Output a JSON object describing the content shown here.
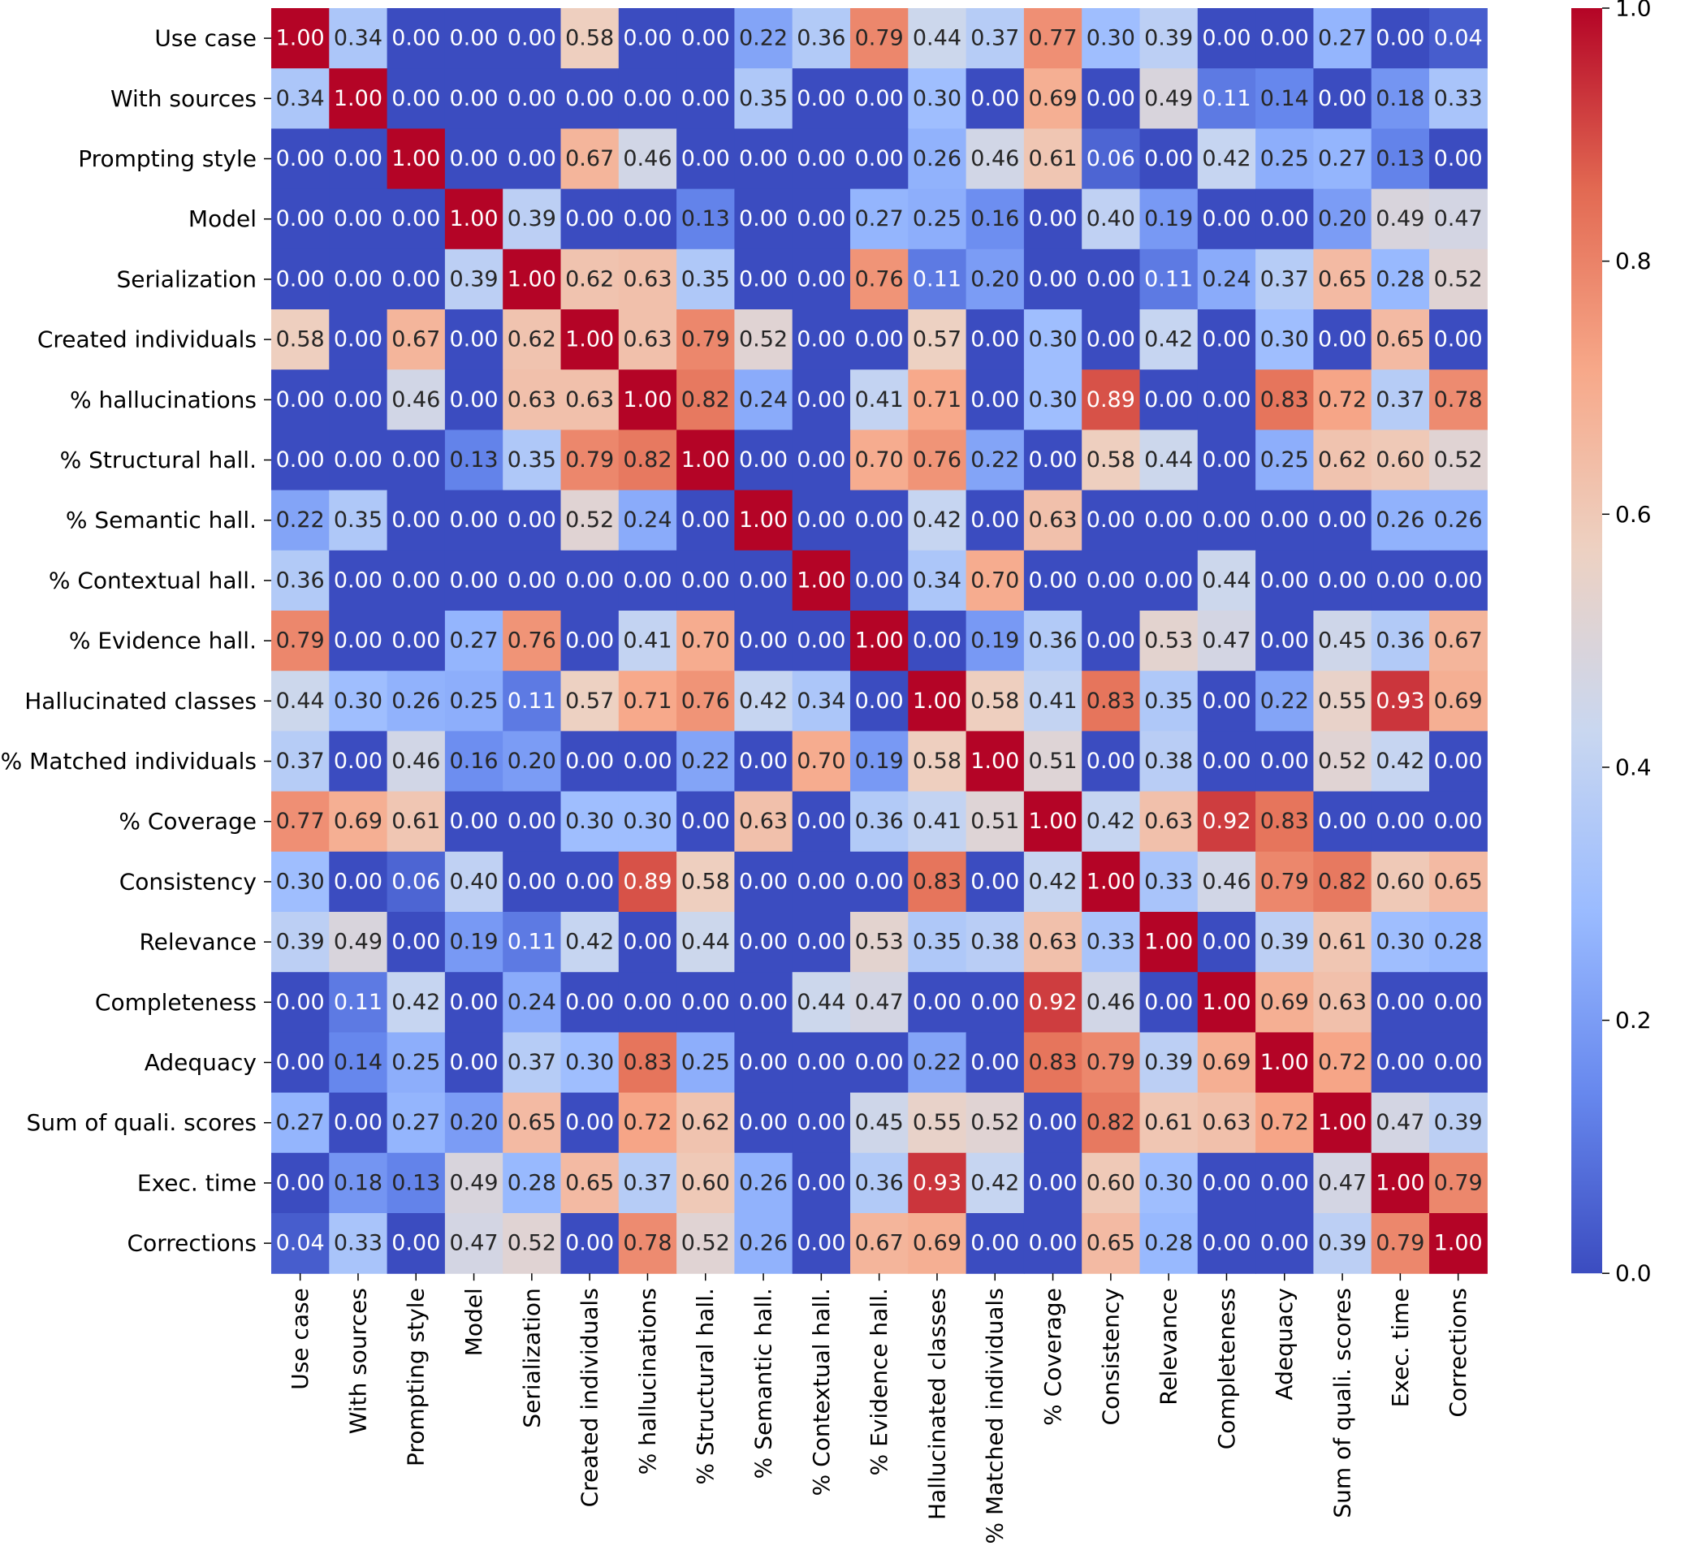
{
  "chart_data": {
    "type": "heatmap",
    "title": "",
    "labels": [
      "Use case",
      "With sources",
      "Prompting style",
      "Model",
      "Serialization",
      "Created individuals",
      "% hallucinations",
      "% Structural hall.",
      "% Semantic hall.",
      "% Contextual hall.",
      "% Evidence hall.",
      "Hallucinated classes",
      "% Matched individuals",
      "% Coverage",
      "Consistency",
      "Relevance",
      "Completeness",
      "Adequacy",
      "Sum of quali. scores",
      "Exec. time",
      "Corrections"
    ],
    "matrix": [
      [
        1.0,
        0.34,
        0.0,
        0.0,
        0.0,
        0.58,
        0.0,
        0.0,
        0.22,
        0.36,
        0.79,
        0.44,
        0.37,
        0.77,
        0.3,
        0.39,
        0.0,
        0.0,
        0.27,
        0.0,
        0.04
      ],
      [
        0.34,
        1.0,
        0.0,
        0.0,
        0.0,
        0.0,
        0.0,
        0.0,
        0.35,
        0.0,
        0.0,
        0.3,
        0.0,
        0.69,
        0.0,
        0.49,
        0.11,
        0.14,
        0.0,
        0.18,
        0.33
      ],
      [
        0.0,
        0.0,
        1.0,
        0.0,
        0.0,
        0.67,
        0.46,
        0.0,
        0.0,
        0.0,
        0.0,
        0.26,
        0.46,
        0.61,
        0.06,
        0.0,
        0.42,
        0.25,
        0.27,
        0.13,
        0.0
      ],
      [
        0.0,
        0.0,
        0.0,
        1.0,
        0.39,
        0.0,
        0.0,
        0.13,
        0.0,
        0.0,
        0.27,
        0.25,
        0.16,
        0.0,
        0.4,
        0.19,
        0.0,
        0.0,
        0.2,
        0.49,
        0.47
      ],
      [
        0.0,
        0.0,
        0.0,
        0.39,
        1.0,
        0.62,
        0.63,
        0.35,
        0.0,
        0.0,
        0.76,
        0.11,
        0.2,
        0.0,
        0.0,
        0.11,
        0.24,
        0.37,
        0.65,
        0.28,
        0.52
      ],
      [
        0.58,
        0.0,
        0.67,
        0.0,
        0.62,
        1.0,
        0.63,
        0.79,
        0.52,
        0.0,
        0.0,
        0.57,
        0.0,
        0.3,
        0.0,
        0.42,
        0.0,
        0.3,
        0.0,
        0.65,
        0.0
      ],
      [
        0.0,
        0.0,
        0.46,
        0.0,
        0.63,
        0.63,
        1.0,
        0.82,
        0.24,
        0.0,
        0.41,
        0.71,
        0.0,
        0.3,
        0.89,
        0.0,
        0.0,
        0.83,
        0.72,
        0.37,
        0.78
      ],
      [
        0.0,
        0.0,
        0.0,
        0.13,
        0.35,
        0.79,
        0.82,
        1.0,
        0.0,
        0.0,
        0.7,
        0.76,
        0.22,
        0.0,
        0.58,
        0.44,
        0.0,
        0.25,
        0.62,
        0.6,
        0.52
      ],
      [
        0.22,
        0.35,
        0.0,
        0.0,
        0.0,
        0.52,
        0.24,
        0.0,
        1.0,
        0.0,
        0.0,
        0.42,
        0.0,
        0.63,
        0.0,
        0.0,
        0.0,
        0.0,
        0.0,
        0.26,
        0.26
      ],
      [
        0.36,
        0.0,
        0.0,
        0.0,
        0.0,
        0.0,
        0.0,
        0.0,
        0.0,
        1.0,
        0.0,
        0.34,
        0.7,
        0.0,
        0.0,
        0.0,
        0.44,
        0.0,
        0.0,
        0.0,
        0.0
      ],
      [
        0.79,
        0.0,
        0.0,
        0.27,
        0.76,
        0.0,
        0.41,
        0.7,
        0.0,
        0.0,
        1.0,
        0.0,
        0.19,
        0.36,
        0.0,
        0.53,
        0.47,
        0.0,
        0.45,
        0.36,
        0.67
      ],
      [
        0.44,
        0.3,
        0.26,
        0.25,
        0.11,
        0.57,
        0.71,
        0.76,
        0.42,
        0.34,
        0.0,
        1.0,
        0.58,
        0.41,
        0.83,
        0.35,
        0.0,
        0.22,
        0.55,
        0.93,
        0.69
      ],
      [
        0.37,
        0.0,
        0.46,
        0.16,
        0.2,
        0.0,
        0.0,
        0.22,
        0.0,
        0.7,
        0.19,
        0.58,
        1.0,
        0.51,
        0.0,
        0.38,
        0.0,
        0.0,
        0.52,
        0.42,
        0.0
      ],
      [
        0.77,
        0.69,
        0.61,
        0.0,
        0.0,
        0.3,
        0.3,
        0.0,
        0.63,
        0.0,
        0.36,
        0.41,
        0.51,
        1.0,
        0.42,
        0.63,
        0.92,
        0.83,
        0.0,
        0.0,
        0.0
      ],
      [
        0.3,
        0.0,
        0.06,
        0.4,
        0.0,
        0.0,
        0.89,
        0.58,
        0.0,
        0.0,
        0.0,
        0.83,
        0.0,
        0.42,
        1.0,
        0.33,
        0.46,
        0.79,
        0.82,
        0.6,
        0.65
      ],
      [
        0.39,
        0.49,
        0.0,
        0.19,
        0.11,
        0.42,
        0.0,
        0.44,
        0.0,
        0.0,
        0.53,
        0.35,
        0.38,
        0.63,
        0.33,
        1.0,
        0.0,
        0.39,
        0.61,
        0.3,
        0.28
      ],
      [
        0.0,
        0.11,
        0.42,
        0.0,
        0.24,
        0.0,
        0.0,
        0.0,
        0.0,
        0.44,
        0.47,
        0.0,
        0.0,
        0.92,
        0.46,
        0.0,
        1.0,
        0.69,
        0.63,
        0.0,
        0.0
      ],
      [
        0.0,
        0.14,
        0.25,
        0.0,
        0.37,
        0.3,
        0.83,
        0.25,
        0.0,
        0.0,
        0.0,
        0.22,
        0.0,
        0.83,
        0.79,
        0.39,
        0.69,
        1.0,
        0.72,
        0.0,
        0.0
      ],
      [
        0.27,
        0.0,
        0.27,
        0.2,
        0.65,
        0.0,
        0.72,
        0.62,
        0.0,
        0.0,
        0.45,
        0.55,
        0.52,
        0.0,
        0.82,
        0.61,
        0.63,
        0.72,
        1.0,
        0.47,
        0.39
      ],
      [
        0.0,
        0.18,
        0.13,
        0.49,
        0.28,
        0.65,
        0.37,
        0.6,
        0.26,
        0.0,
        0.36,
        0.93,
        0.42,
        0.0,
        0.6,
        0.3,
        0.0,
        0.0,
        0.47,
        1.0,
        0.79
      ],
      [
        0.04,
        0.33,
        0.0,
        0.47,
        0.52,
        0.0,
        0.78,
        0.52,
        0.26,
        0.0,
        0.67,
        0.69,
        0.0,
        0.0,
        0.65,
        0.28,
        0.0,
        0.0,
        0.39,
        0.79,
        1.0
      ]
    ],
    "value_format": "2 decimals",
    "colormap": "coolwarm",
    "colormap_stops": [
      "#3b4cc0",
      "#6788ee",
      "#9abbff",
      "#c9d7f0",
      "#edd1c2",
      "#f7a889",
      "#e26952",
      "#b40426"
    ],
    "colorbar": {
      "range": [
        0.0,
        1.0
      ],
      "ticks": [
        "0.0",
        "0.2",
        "0.4",
        "0.6",
        "0.8",
        "1.0"
      ],
      "placement": "right"
    },
    "grid": false,
    "legend": "colorbar right"
  }
}
